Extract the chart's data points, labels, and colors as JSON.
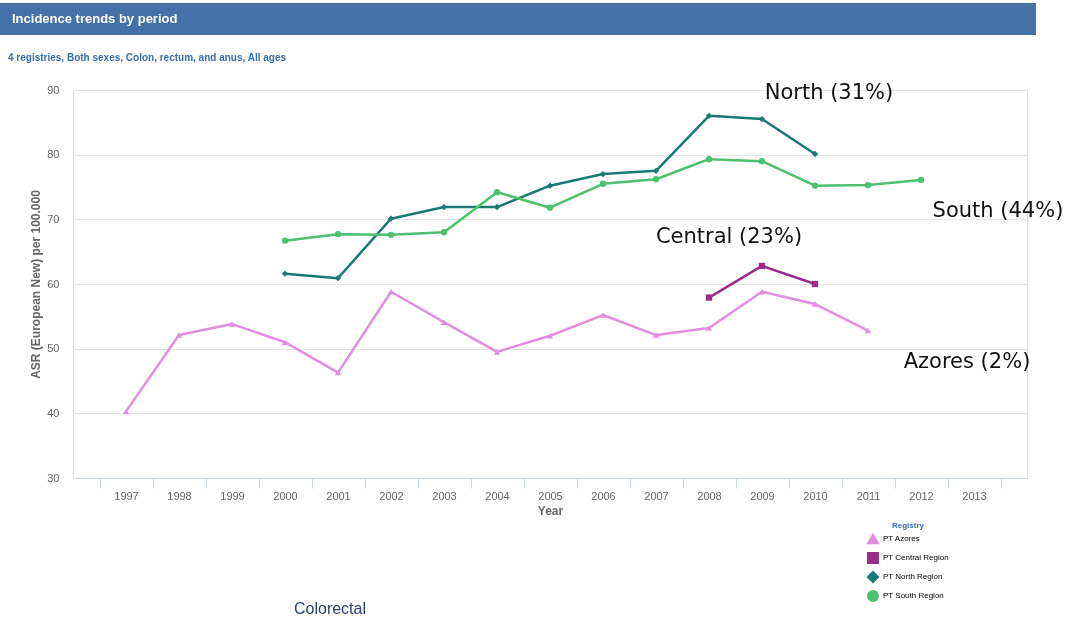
{
  "chart_data": {
    "type": "line",
    "title": "Incidence trends by period",
    "subtitle": "4 registries, Both sexes, Colon, rectum, and anus, All ages",
    "xlabel": "Year",
    "ylabel": "ASR (European New) per 100.000",
    "legend_title": "Registry",
    "categories": [
      "1997",
      "1998",
      "1999",
      "2000",
      "2001",
      "2002",
      "2003",
      "2004",
      "2005",
      "2006",
      "2007",
      "2008",
      "2009",
      "2010",
      "2011",
      "2012",
      "2013"
    ],
    "series": [
      {
        "name": "PT Azores",
        "color": "#e08fe0",
        "marker": "triangle",
        "values": [
          40.3,
          52.1,
          53.8,
          51.0,
          46.3,
          58.8,
          54.1,
          49.5,
          52.0,
          55.2,
          52.1,
          53.2,
          58.8,
          56.9,
          52.8,
          null,
          null
        ]
      },
      {
        "name": "PT Central Region",
        "color": "#9b2d8a",
        "marker": "square",
        "values": [
          null,
          null,
          null,
          null,
          null,
          null,
          null,
          null,
          null,
          null,
          null,
          57.9,
          62.8,
          60.0,
          null,
          null,
          null
        ]
      },
      {
        "name": "PT North Region",
        "color": "#1a7a72",
        "marker": "diamond",
        "values": [
          null,
          null,
          null,
          61.6,
          60.9,
          70.1,
          71.9,
          71.9,
          75.2,
          77.0,
          77.5,
          86.0,
          85.5,
          80.1,
          null,
          null,
          null
        ]
      },
      {
        "name": "PT South Region",
        "color": "#4cc26e",
        "marker": "circle",
        "values": [
          null,
          null,
          null,
          66.7,
          67.7,
          67.6,
          68.0,
          74.2,
          71.8,
          75.5,
          76.2,
          79.3,
          79.0,
          75.2,
          75.3,
          76.1,
          null
        ]
      }
    ],
    "ylim": [
      30,
      90
    ],
    "yticks": [
      30,
      40,
      50,
      60,
      70,
      80,
      90
    ],
    "grid": "y",
    "legend": "bottom right",
    "line_style": "solid",
    "annotations": [
      "North (31%)",
      "South (44%)",
      "Central (23%)",
      "Azores (2%)",
      "Colorectal"
    ]
  }
}
